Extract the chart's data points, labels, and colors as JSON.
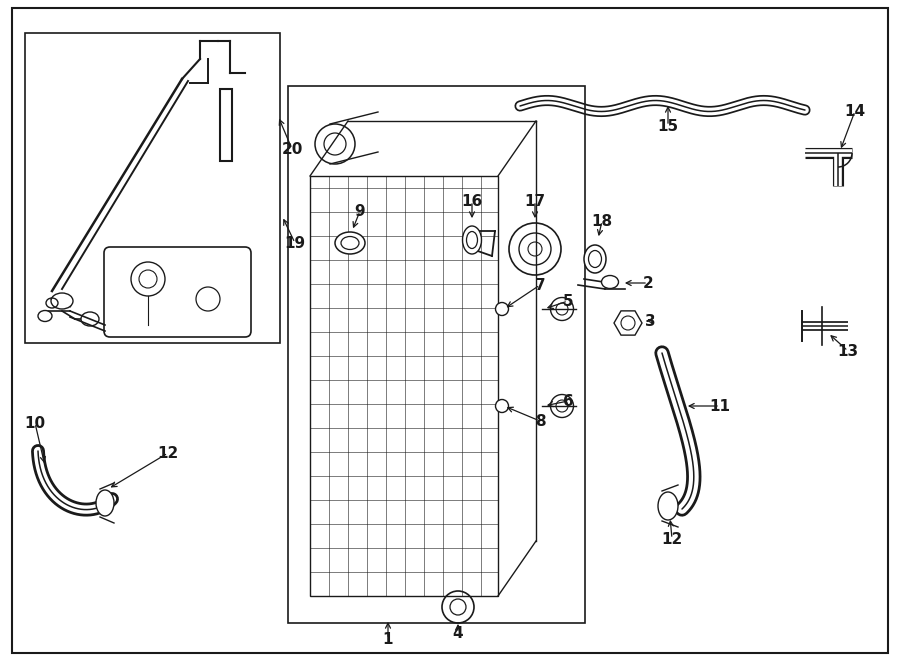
{
  "bg_color": "#ffffff",
  "line_color": "#1a1a1a",
  "fig_width": 9.0,
  "fig_height": 6.61,
  "label_fontsize": 11
}
